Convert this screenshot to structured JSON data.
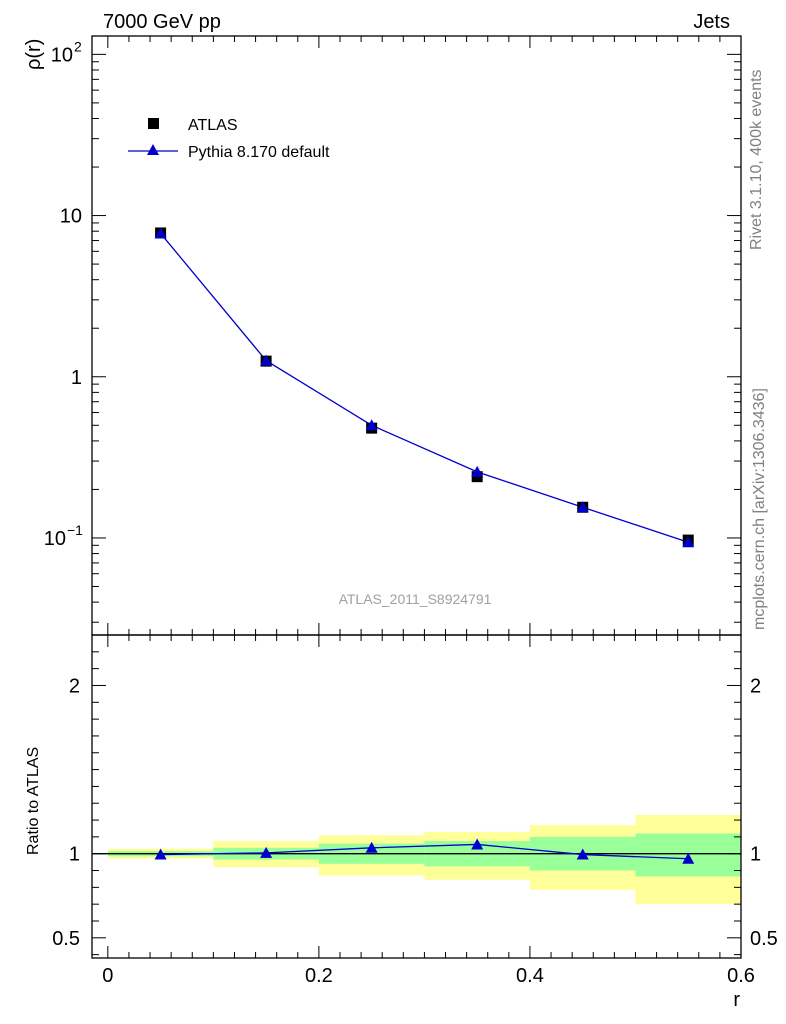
{
  "header": {
    "energy_label": "7000 GeV pp",
    "process_label": "Jets"
  },
  "side_text": {
    "rivet": "Rivet 3.1.10,  400k events",
    "mcplots": "mcplots.cern.ch [arXiv:1306.3436]"
  },
  "analysis_id": "ATLAS_2011_S8924791",
  "chart_data": [
    {
      "type": "scatter",
      "panel": "main",
      "ylabel": "ρ(r)",
      "yscale": "log",
      "ylim": [
        0.025,
        130
      ],
      "xlim": [
        -0.015,
        0.6
      ],
      "y_ticks": [
        {
          "value": 0.1,
          "label": "10",
          "exp": "−1"
        },
        {
          "value": 1,
          "label": "1",
          "exp": ""
        },
        {
          "value": 10,
          "label": "10",
          "exp": ""
        },
        {
          "value": 100,
          "label": "10",
          "exp": "2"
        }
      ],
      "legend": {
        "position": "top-left"
      },
      "series": [
        {
          "name": "ATLAS",
          "marker": "square",
          "color": "#000000",
          "x": [
            0.05,
            0.15,
            0.25,
            0.35,
            0.45,
            0.55
          ],
          "y": [
            7.8,
            1.25,
            0.48,
            0.24,
            0.155,
            0.097
          ]
        },
        {
          "name": "Pythia 8.170 default",
          "marker": "triangle",
          "line": true,
          "color": "#0000cc",
          "x": [
            0.05,
            0.15,
            0.25,
            0.35,
            0.45,
            0.55
          ],
          "y": [
            7.75,
            1.26,
            0.5,
            0.257,
            0.155,
            0.094
          ]
        }
      ]
    },
    {
      "type": "line",
      "panel": "ratio",
      "ylabel": "Ratio to ATLAS",
      "xlabel": "r",
      "xlim": [
        -0.015,
        0.6
      ],
      "ylim": [
        0.38,
        2.3
      ],
      "x_ticks": [
        {
          "value": 0,
          "label": "0"
        },
        {
          "value": 0.2,
          "label": "0.2"
        },
        {
          "value": 0.4,
          "label": "0.4"
        },
        {
          "value": 0.6,
          "label": "0.6"
        }
      ],
      "y_ticks": [
        {
          "value": 0.5,
          "label": "0.5"
        },
        {
          "value": 1,
          "label": "1"
        },
        {
          "value": 2,
          "label": "2"
        }
      ],
      "bands": {
        "bin_edges": [
          0.0,
          0.1,
          0.2,
          0.3,
          0.4,
          0.5,
          0.6
        ],
        "inner": {
          "color": "#99ff99",
          "lo": [
            0.985,
            0.965,
            0.94,
            0.925,
            0.9,
            0.865
          ],
          "hi": [
            1.015,
            1.035,
            1.06,
            1.075,
            1.1,
            1.12
          ]
        },
        "outer": {
          "color": "#ffff99",
          "lo": [
            0.97,
            0.92,
            0.87,
            0.845,
            0.785,
            0.7
          ],
          "hi": [
            1.03,
            1.075,
            1.11,
            1.13,
            1.17,
            1.23
          ]
        }
      },
      "series": [
        {
          "name": "Pythia 8.170 default",
          "marker": "triangle",
          "color": "#0000cc",
          "x": [
            0.05,
            0.15,
            0.25,
            0.35,
            0.45,
            0.55
          ],
          "y": [
            0.995,
            1.005,
            1.035,
            1.055,
            0.995,
            0.97
          ],
          "err": [
            0.006,
            0.01,
            0.02,
            0.022,
            0.02,
            0.008
          ]
        }
      ]
    }
  ]
}
